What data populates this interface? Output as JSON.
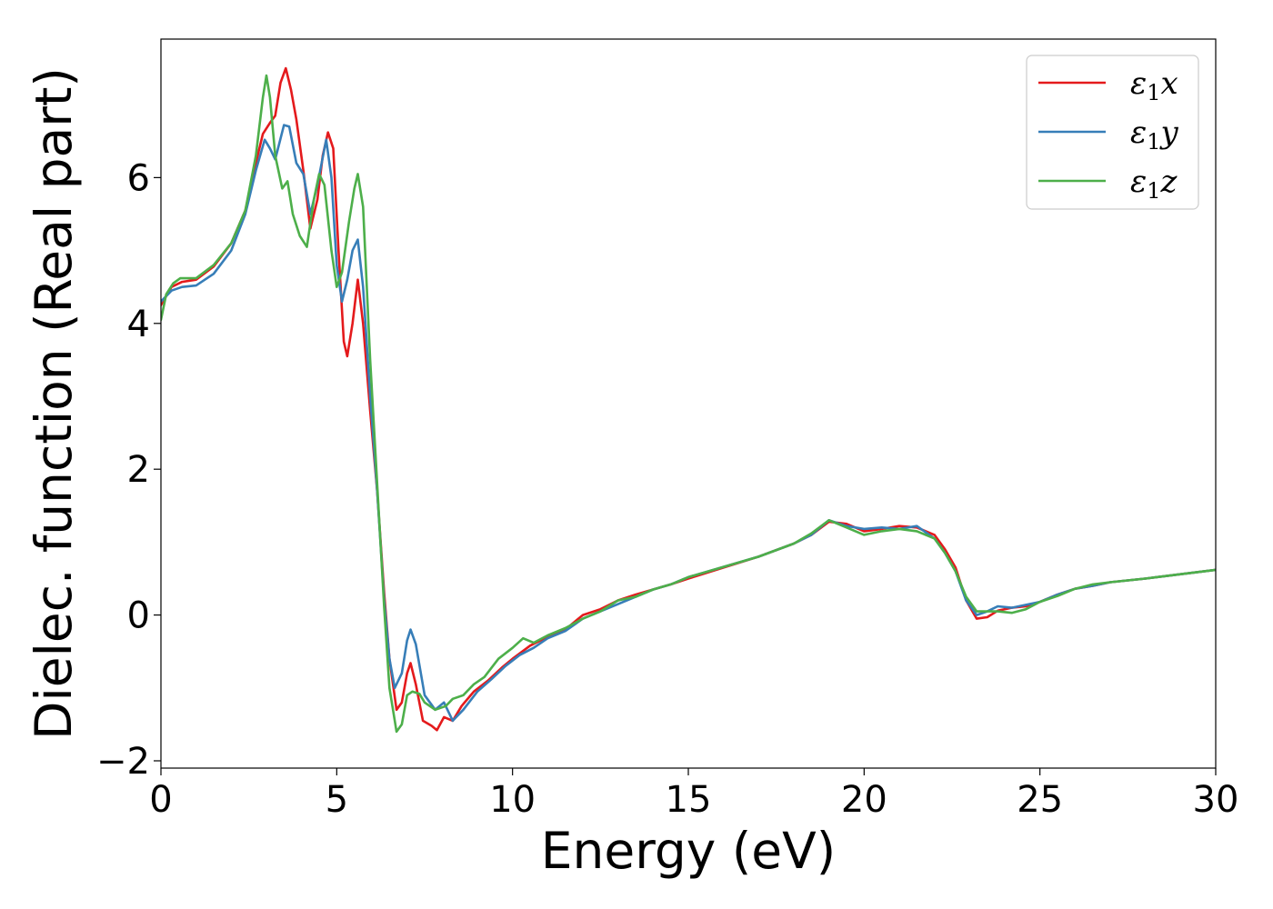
{
  "chart_data": {
    "type": "line",
    "xlabel": "Energy (eV)",
    "ylabel": "Dielec. function (Real part)",
    "xlim": [
      0,
      30
    ],
    "ylim": [
      -2.1,
      7.9
    ],
    "xticks": [
      0,
      5,
      10,
      15,
      20,
      25,
      30
    ],
    "yticks": [
      -2,
      0,
      2,
      4,
      6
    ],
    "xtick_labels": [
      "0",
      "5",
      "10",
      "15",
      "20",
      "25",
      "30"
    ],
    "ytick_labels": [
      "−2",
      "0",
      "2",
      "4",
      "6"
    ],
    "grid": false,
    "legend_position": "top-right",
    "series": [
      {
        "name": "ε₁x",
        "legend_main": "ε",
        "legend_sub": "1",
        "legend_var": "x",
        "color": "#e41a1c",
        "points": [
          [
            0,
            4.25
          ],
          [
            0.3,
            4.5
          ],
          [
            0.6,
            4.57
          ],
          [
            1,
            4.6
          ],
          [
            1.5,
            4.78
          ],
          [
            2,
            5.1
          ],
          [
            2.4,
            5.55
          ],
          [
            2.7,
            6.2
          ],
          [
            2.9,
            6.6
          ],
          [
            3.1,
            6.75
          ],
          [
            3.25,
            6.85
          ],
          [
            3.4,
            7.3
          ],
          [
            3.55,
            7.5
          ],
          [
            3.7,
            7.2
          ],
          [
            3.85,
            6.8
          ],
          [
            4.05,
            6.1
          ],
          [
            4.25,
            5.3
          ],
          [
            4.45,
            5.7
          ],
          [
            4.6,
            6.3
          ],
          [
            4.75,
            6.62
          ],
          [
            4.9,
            6.4
          ],
          [
            5.05,
            5.0
          ],
          [
            5.2,
            3.75
          ],
          [
            5.3,
            3.55
          ],
          [
            5.45,
            4.0
          ],
          [
            5.6,
            4.6
          ],
          [
            5.75,
            4.0
          ],
          [
            5.95,
            2.8
          ],
          [
            6.15,
            1.7
          ],
          [
            6.35,
            0.3
          ],
          [
            6.5,
            -0.6
          ],
          [
            6.7,
            -1.3
          ],
          [
            6.85,
            -1.2
          ],
          [
            7.0,
            -0.8
          ],
          [
            7.1,
            -0.66
          ],
          [
            7.25,
            -0.95
          ],
          [
            7.45,
            -1.45
          ],
          [
            7.7,
            -1.52
          ],
          [
            7.85,
            -1.58
          ],
          [
            8.05,
            -1.4
          ],
          [
            8.3,
            -1.45
          ],
          [
            8.55,
            -1.25
          ],
          [
            8.9,
            -1.05
          ],
          [
            9.3,
            -0.9
          ],
          [
            9.7,
            -0.72
          ],
          [
            10,
            -0.6
          ],
          [
            10.5,
            -0.42
          ],
          [
            11,
            -0.3
          ],
          [
            11.5,
            -0.2
          ],
          [
            12,
            0.0
          ],
          [
            12.5,
            0.08
          ],
          [
            13,
            0.2
          ],
          [
            13.5,
            0.28
          ],
          [
            14,
            0.35
          ],
          [
            14.5,
            0.42
          ],
          [
            15,
            0.5
          ],
          [
            16,
            0.65
          ],
          [
            17,
            0.8
          ],
          [
            18,
            0.98
          ],
          [
            18.5,
            1.1
          ],
          [
            19,
            1.28
          ],
          [
            19.5,
            1.25
          ],
          [
            20,
            1.15
          ],
          [
            20.5,
            1.18
          ],
          [
            21,
            1.22
          ],
          [
            21.5,
            1.2
          ],
          [
            22,
            1.1
          ],
          [
            22.3,
            0.9
          ],
          [
            22.6,
            0.65
          ],
          [
            22.9,
            0.2
          ],
          [
            23.2,
            -0.05
          ],
          [
            23.5,
            -0.03
          ],
          [
            23.8,
            0.06
          ],
          [
            24.2,
            0.1
          ],
          [
            24.6,
            0.12
          ],
          [
            25,
            0.18
          ],
          [
            25.5,
            0.28
          ],
          [
            26,
            0.36
          ],
          [
            26.5,
            0.4
          ],
          [
            27,
            0.45
          ],
          [
            28,
            0.5
          ],
          [
            29,
            0.56
          ],
          [
            30,
            0.62
          ]
        ]
      },
      {
        "name": "ε₁y",
        "legend_main": "ε",
        "legend_sub": "1",
        "legend_var": "y",
        "color": "#377eb8",
        "points": [
          [
            0,
            4.3
          ],
          [
            0.3,
            4.45
          ],
          [
            0.6,
            4.5
          ],
          [
            1,
            4.52
          ],
          [
            1.5,
            4.68
          ],
          [
            2,
            5.0
          ],
          [
            2.4,
            5.5
          ],
          [
            2.7,
            6.1
          ],
          [
            2.95,
            6.52
          ],
          [
            3.1,
            6.4
          ],
          [
            3.25,
            6.25
          ],
          [
            3.5,
            6.72
          ],
          [
            3.65,
            6.7
          ],
          [
            3.85,
            6.2
          ],
          [
            4.05,
            6.05
          ],
          [
            4.25,
            5.5
          ],
          [
            4.45,
            5.9
          ],
          [
            4.7,
            6.52
          ],
          [
            4.85,
            6.0
          ],
          [
            5.0,
            4.8
          ],
          [
            5.15,
            4.3
          ],
          [
            5.3,
            4.6
          ],
          [
            5.45,
            5.0
          ],
          [
            5.6,
            5.15
          ],
          [
            5.75,
            4.5
          ],
          [
            5.95,
            3.0
          ],
          [
            6.15,
            1.7
          ],
          [
            6.35,
            0.2
          ],
          [
            6.5,
            -0.6
          ],
          [
            6.65,
            -1.0
          ],
          [
            6.85,
            -0.8
          ],
          [
            7.0,
            -0.35
          ],
          [
            7.1,
            -0.2
          ],
          [
            7.25,
            -0.4
          ],
          [
            7.5,
            -1.1
          ],
          [
            7.8,
            -1.3
          ],
          [
            8.05,
            -1.2
          ],
          [
            8.3,
            -1.45
          ],
          [
            8.6,
            -1.3
          ],
          [
            9,
            -1.05
          ],
          [
            9.4,
            -0.88
          ],
          [
            9.8,
            -0.7
          ],
          [
            10.2,
            -0.55
          ],
          [
            10.6,
            -0.45
          ],
          [
            11,
            -0.32
          ],
          [
            11.5,
            -0.22
          ],
          [
            12,
            -0.05
          ],
          [
            12.5,
            0.05
          ],
          [
            13,
            0.15
          ],
          [
            13.5,
            0.25
          ],
          [
            14,
            0.35
          ],
          [
            14.5,
            0.42
          ],
          [
            15,
            0.52
          ],
          [
            16,
            0.66
          ],
          [
            17,
            0.8
          ],
          [
            18,
            0.98
          ],
          [
            18.5,
            1.1
          ],
          [
            19,
            1.3
          ],
          [
            19.5,
            1.22
          ],
          [
            20,
            1.18
          ],
          [
            20.5,
            1.2
          ],
          [
            21,
            1.18
          ],
          [
            21.5,
            1.22
          ],
          [
            22,
            1.05
          ],
          [
            22.3,
            0.85
          ],
          [
            22.6,
            0.6
          ],
          [
            22.9,
            0.2
          ],
          [
            23.2,
            0.0
          ],
          [
            23.5,
            0.05
          ],
          [
            23.8,
            0.12
          ],
          [
            24.2,
            0.1
          ],
          [
            24.6,
            0.14
          ],
          [
            25,
            0.18
          ],
          [
            25.5,
            0.28
          ],
          [
            26,
            0.36
          ],
          [
            26.5,
            0.4
          ],
          [
            27,
            0.45
          ],
          [
            28,
            0.5
          ],
          [
            29,
            0.56
          ],
          [
            30,
            0.62
          ]
        ]
      },
      {
        "name": "ε₁z",
        "legend_main": "ε",
        "legend_sub": "1",
        "legend_var": "z",
        "color": "#4daf4a",
        "points": [
          [
            0,
            4.05
          ],
          [
            0.15,
            4.4
          ],
          [
            0.35,
            4.55
          ],
          [
            0.55,
            4.62
          ],
          [
            1,
            4.62
          ],
          [
            1.5,
            4.8
          ],
          [
            2,
            5.1
          ],
          [
            2.4,
            5.55
          ],
          [
            2.7,
            6.3
          ],
          [
            2.9,
            7.1
          ],
          [
            3.0,
            7.4
          ],
          [
            3.1,
            7.1
          ],
          [
            3.25,
            6.3
          ],
          [
            3.45,
            5.85
          ],
          [
            3.6,
            5.95
          ],
          [
            3.75,
            5.5
          ],
          [
            3.95,
            5.2
          ],
          [
            4.15,
            5.05
          ],
          [
            4.35,
            5.7
          ],
          [
            4.5,
            6.05
          ],
          [
            4.65,
            5.9
          ],
          [
            4.85,
            5.0
          ],
          [
            5.0,
            4.5
          ],
          [
            5.15,
            4.7
          ],
          [
            5.35,
            5.4
          ],
          [
            5.5,
            5.85
          ],
          [
            5.6,
            6.05
          ],
          [
            5.75,
            5.6
          ],
          [
            5.95,
            3.5
          ],
          [
            6.15,
            1.8
          ],
          [
            6.35,
            0.1
          ],
          [
            6.5,
            -1.0
          ],
          [
            6.7,
            -1.6
          ],
          [
            6.85,
            -1.5
          ],
          [
            7.0,
            -1.1
          ],
          [
            7.15,
            -1.05
          ],
          [
            7.35,
            -1.08
          ],
          [
            7.5,
            -1.2
          ],
          [
            7.8,
            -1.3
          ],
          [
            8.1,
            -1.25
          ],
          [
            8.3,
            -1.15
          ],
          [
            8.6,
            -1.1
          ],
          [
            8.9,
            -0.95
          ],
          [
            9.2,
            -0.85
          ],
          [
            9.6,
            -0.6
          ],
          [
            10,
            -0.45
          ],
          [
            10.3,
            -0.32
          ],
          [
            10.6,
            -0.38
          ],
          [
            11,
            -0.28
          ],
          [
            11.5,
            -0.18
          ],
          [
            12,
            -0.05
          ],
          [
            12.5,
            0.05
          ],
          [
            13,
            0.2
          ],
          [
            13.5,
            0.25
          ],
          [
            14,
            0.35
          ],
          [
            14.5,
            0.42
          ],
          [
            15,
            0.52
          ],
          [
            16,
            0.66
          ],
          [
            17,
            0.8
          ],
          [
            18,
            0.98
          ],
          [
            18.5,
            1.12
          ],
          [
            19,
            1.3
          ],
          [
            19.5,
            1.2
          ],
          [
            20,
            1.1
          ],
          [
            20.5,
            1.15
          ],
          [
            21,
            1.18
          ],
          [
            21.5,
            1.15
          ],
          [
            22,
            1.05
          ],
          [
            22.3,
            0.85
          ],
          [
            22.6,
            0.6
          ],
          [
            22.9,
            0.25
          ],
          [
            23.2,
            0.05
          ],
          [
            23.5,
            0.05
          ],
          [
            23.8,
            0.05
          ],
          [
            24.2,
            0.03
          ],
          [
            24.6,
            0.08
          ],
          [
            25,
            0.18
          ],
          [
            25.5,
            0.26
          ],
          [
            26,
            0.36
          ],
          [
            26.5,
            0.42
          ],
          [
            27,
            0.45
          ],
          [
            28,
            0.5
          ],
          [
            29,
            0.56
          ],
          [
            30,
            0.62
          ]
        ]
      }
    ]
  }
}
